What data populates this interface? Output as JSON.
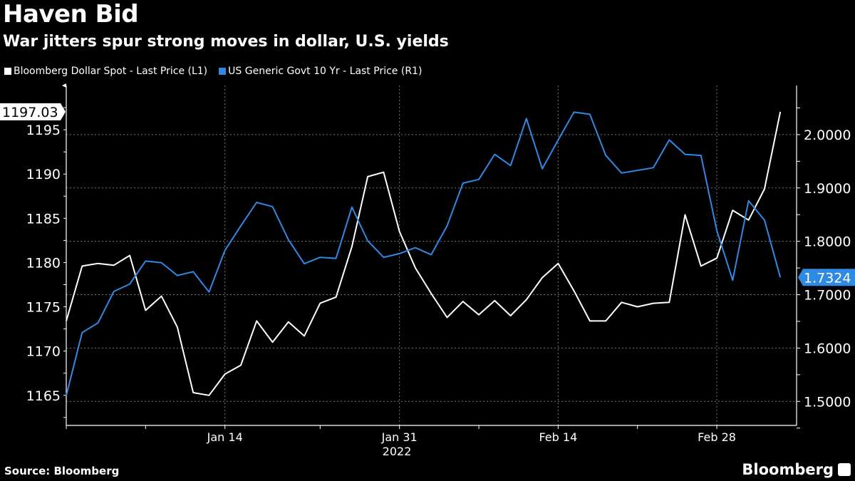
{
  "chart_data": {
    "type": "line",
    "title": "Haven Bid",
    "subtitle": "War jitters spur strong moves in dollar, U.S. yields",
    "xlabel": "2022",
    "x": [
      "Dec 31",
      "Jan 3",
      "Jan 4",
      "Jan 5",
      "Jan 6",
      "Jan 7",
      "Jan 10",
      "Jan 11",
      "Jan 12",
      "Jan 13",
      "Jan 14",
      "Jan 17",
      "Jan 18",
      "Jan 19",
      "Jan 20",
      "Jan 21",
      "Jan 24",
      "Jan 25",
      "Jan 26",
      "Jan 27",
      "Jan 28",
      "Jan 31",
      "Feb 1",
      "Feb 2",
      "Feb 3",
      "Feb 4",
      "Feb 7",
      "Feb 8",
      "Feb 9",
      "Feb 10",
      "Feb 11",
      "Feb 14",
      "Feb 15",
      "Feb 16",
      "Feb 17",
      "Feb 18",
      "Feb 21",
      "Feb 22",
      "Feb 23",
      "Feb 24",
      "Feb 25",
      "Feb 28",
      "Mar 1",
      "Mar 2",
      "Mar 3",
      "Mar 4"
    ],
    "x_ticks": [
      {
        "label": "Jan 14",
        "index": 10
      },
      {
        "label": "Jan 31",
        "index": 21
      },
      {
        "label": "Feb 14",
        "index": 31
      },
      {
        "label": "Feb 28",
        "index": 41
      }
    ],
    "x_minor_ticks": [
      0,
      5,
      10,
      16,
      21,
      26,
      31,
      36,
      41
    ],
    "series": [
      {
        "name": "Bloomberg Dollar Spot - Last Price (L1)",
        "axis": "left",
        "color": "#ffffff",
        "last_label": "1197.03",
        "values": [
          1173.4,
          1179.6,
          1179.9,
          1179.7,
          1180.8,
          1174.6,
          1176.2,
          1172.7,
          1165.3,
          1165.0,
          1167.4,
          1168.4,
          1173.4,
          1171.0,
          1173.3,
          1171.7,
          1175.4,
          1176.1,
          1181.8,
          1189.7,
          1190.2,
          1183.5,
          1179.4,
          1176.5,
          1173.8,
          1175.6,
          1174.1,
          1175.7,
          1174.0,
          1175.8,
          1178.3,
          1179.9,
          1176.8,
          1173.4,
          1173.4,
          1175.5,
          1175.0,
          1175.4,
          1175.5,
          1185.4,
          1179.6,
          1180.5,
          1185.9,
          1184.8,
          1188.3,
          1197.03
        ]
      },
      {
        "name": "US Generic Govt 10 Yr - Last Price (R1)",
        "axis": "right",
        "color": "#2f8ae5",
        "last_label": "1.7324",
        "values": [
          1.511,
          1.629,
          1.647,
          1.706,
          1.72,
          1.763,
          1.76,
          1.736,
          1.743,
          1.705,
          1.783,
          1.829,
          1.873,
          1.865,
          1.803,
          1.758,
          1.77,
          1.768,
          1.864,
          1.801,
          1.77,
          1.777,
          1.788,
          1.775,
          1.829,
          1.909,
          1.916,
          1.963,
          1.942,
          2.03,
          1.936,
          1.99,
          2.042,
          2.038,
          1.961,
          1.928,
          1.933,
          1.938,
          1.99,
          1.963,
          1.961,
          1.82,
          1.727,
          1.876,
          1.84,
          1.7324
        ]
      }
    ],
    "left_axis": {
      "ticks": [
        "1165",
        "1170",
        "1175",
        "1180",
        "1185",
        "1190",
        "1195"
      ],
      "ylim": [
        1161.6,
        1200
      ]
    },
    "right_axis": {
      "ticks": [
        "1.5000",
        "1.6000",
        "1.7000",
        "1.8000",
        "1.9000",
        "2.0000"
      ],
      "ylim": [
        1.455,
        2.092
      ]
    },
    "grid": true,
    "legend_position": "top-left"
  },
  "source": "Source: Bloomberg",
  "brand": "Bloomberg"
}
